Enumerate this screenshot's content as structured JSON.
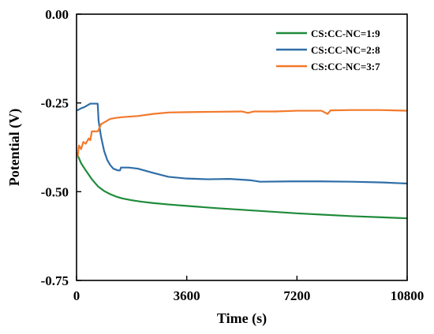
{
  "chart_data": {
    "type": "line",
    "xlabel": "Time (s)",
    "ylabel": "Potential (V)",
    "xlim": [
      0,
      10800
    ],
    "ylim": [
      -0.75,
      0.0
    ],
    "x_ticks": [
      0,
      3600,
      7200,
      10800
    ],
    "x_tick_labels": [
      "0",
      "3600",
      "7200",
      "10800"
    ],
    "y_ticks": [
      0.0,
      -0.25,
      -0.5,
      -0.75
    ],
    "y_tick_labels": [
      "0.00",
      "-0.25",
      "-0.50",
      "-0.75"
    ],
    "grid": false,
    "legend_position": "top-right",
    "series": [
      {
        "name": "CS:CC-NC=1:9",
        "color": "#1f8b3a",
        "points": [
          [
            0,
            -0.39
          ],
          [
            150,
            -0.42
          ],
          [
            300,
            -0.44
          ],
          [
            500,
            -0.465
          ],
          [
            700,
            -0.485
          ],
          [
            900,
            -0.498
          ],
          [
            1100,
            -0.507
          ],
          [
            1300,
            -0.514
          ],
          [
            1500,
            -0.519
          ],
          [
            1800,
            -0.524
          ],
          [
            2100,
            -0.528
          ],
          [
            2500,
            -0.532
          ],
          [
            3000,
            -0.536
          ],
          [
            3600,
            -0.54
          ],
          [
            4500,
            -0.546
          ],
          [
            5400,
            -0.551
          ],
          [
            6300,
            -0.556
          ],
          [
            7200,
            -0.561
          ],
          [
            8100,
            -0.565
          ],
          [
            9000,
            -0.569
          ],
          [
            9900,
            -0.572
          ],
          [
            10800,
            -0.575
          ]
        ]
      },
      {
        "name": "CS:CC-NC=2:8",
        "color": "#2f6ea8",
        "points": [
          [
            0,
            -0.27
          ],
          [
            50,
            -0.27
          ],
          [
            150,
            -0.265
          ],
          [
            250,
            -0.262
          ],
          [
            350,
            -0.257
          ],
          [
            450,
            -0.252
          ],
          [
            650,
            -0.252
          ],
          [
            690,
            -0.252
          ],
          [
            720,
            -0.3
          ],
          [
            800,
            -0.345
          ],
          [
            900,
            -0.385
          ],
          [
            1000,
            -0.41
          ],
          [
            1100,
            -0.425
          ],
          [
            1200,
            -0.435
          ],
          [
            1350,
            -0.44
          ],
          [
            1420,
            -0.44
          ],
          [
            1450,
            -0.432
          ],
          [
            1700,
            -0.432
          ],
          [
            2000,
            -0.435
          ],
          [
            2500,
            -0.447
          ],
          [
            3000,
            -0.458
          ],
          [
            3600,
            -0.463
          ],
          [
            4300,
            -0.465
          ],
          [
            5000,
            -0.464
          ],
          [
            5700,
            -0.468
          ],
          [
            6000,
            -0.472
          ],
          [
            7000,
            -0.471
          ],
          [
            8000,
            -0.471
          ],
          [
            9000,
            -0.472
          ],
          [
            10000,
            -0.474
          ],
          [
            10800,
            -0.477
          ]
        ]
      },
      {
        "name": "CS:CC-NC=3:7",
        "color": "#f2792b",
        "points": [
          [
            0,
            -0.39
          ],
          [
            40,
            -0.4
          ],
          [
            80,
            -0.37
          ],
          [
            150,
            -0.38
          ],
          [
            220,
            -0.36
          ],
          [
            300,
            -0.365
          ],
          [
            400,
            -0.35
          ],
          [
            450,
            -0.355
          ],
          [
            500,
            -0.33
          ],
          [
            600,
            -0.33
          ],
          [
            700,
            -0.33
          ],
          [
            800,
            -0.31
          ],
          [
            900,
            -0.305
          ],
          [
            1000,
            -0.3
          ],
          [
            1100,
            -0.295
          ],
          [
            1300,
            -0.292
          ],
          [
            1500,
            -0.29
          ],
          [
            2000,
            -0.287
          ],
          [
            2500,
            -0.281
          ],
          [
            3000,
            -0.277
          ],
          [
            3600,
            -0.276
          ],
          [
            4500,
            -0.275
          ],
          [
            5400,
            -0.274
          ],
          [
            5600,
            -0.278
          ],
          [
            5800,
            -0.274
          ],
          [
            6500,
            -0.274
          ],
          [
            7200,
            -0.272
          ],
          [
            8000,
            -0.272
          ],
          [
            8200,
            -0.281
          ],
          [
            8300,
            -0.271
          ],
          [
            9000,
            -0.27
          ],
          [
            9900,
            -0.27
          ],
          [
            10800,
            -0.272
          ]
        ]
      }
    ]
  }
}
